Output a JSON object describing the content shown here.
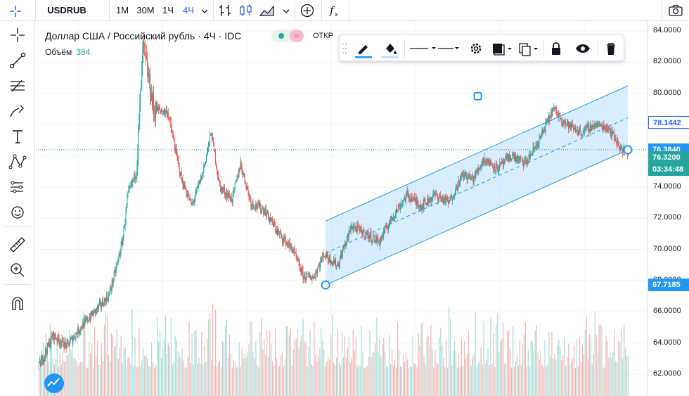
{
  "toolbar": {
    "symbol": "USDRUB",
    "intervals": [
      "1M",
      "30M",
      "1Ч",
      "4Ч"
    ],
    "active_interval": "4Ч"
  },
  "legend": {
    "title": "Доллар США / Российский рубль · 4Ч · IDC",
    "ohlc_label": "ОТКР",
    "volume_label": "Объём",
    "volume_value": "384"
  },
  "price_axis": {
    "ticks": [
      "84.0000",
      "82.0000",
      "80.0000",
      "78.0000",
      "76.0000",
      "74.0000",
      "72.0000",
      "70.0000",
      "68.0000",
      "66.0000",
      "64.0000",
      "62.0000"
    ],
    "labels": [
      {
        "text": "78.1442",
        "color": "#ffffff",
        "bg": "#2962ff",
        "style": "outline"
      },
      {
        "text": "76.3840",
        "color": "#ffffff",
        "bg": "#2196f3"
      },
      {
        "text": "76.3200",
        "color": "#ffffff",
        "bg": "#26a69a"
      },
      {
        "text": "03:34:48",
        "color": "#ffffff",
        "bg": "#26a69a"
      },
      {
        "text": "67.7185",
        "color": "#ffffff",
        "bg": "#2196f3"
      }
    ]
  },
  "colors": {
    "up": "#26a69a",
    "down": "#ef5350",
    "channel_line": "#2196f3",
    "channel_fill": "#bbdefb",
    "grid": "#f0f3fa"
  },
  "icons": {
    "left": [
      "crosshair-icon",
      "trend-line-icon",
      "fib-icon",
      "brush-icon",
      "text-icon",
      "pattern-icon",
      "prediction-icon",
      "emoji-icon",
      "ruler-icon",
      "zoom-in-icon",
      "magnet-icon"
    ],
    "drawbar": [
      "pencil-icon",
      "fill-icon",
      "line-style-icon",
      "line-width-icon",
      "settings-icon",
      "template-icon",
      "clone-icon",
      "lock-icon",
      "eye-icon",
      "trash-icon"
    ]
  },
  "chart_data": {
    "type": "candlestick",
    "ylim": [
      61,
      84.5
    ],
    "y_ticks": [
      62,
      64,
      66,
      68,
      70,
      72,
      74,
      76,
      78,
      80,
      82,
      84
    ],
    "anchor_points": [
      {
        "i": 0,
        "y": 62.5
      },
      {
        "i": 20,
        "y": 64.5
      },
      {
        "i": 40,
        "y": 63.8
      },
      {
        "i": 60,
        "y": 65.0
      },
      {
        "i": 80,
        "y": 66.0
      },
      {
        "i": 100,
        "y": 67.0
      },
      {
        "i": 110,
        "y": 68.6
      },
      {
        "i": 120,
        "y": 70.5
      },
      {
        "i": 128,
        "y": 73.5
      },
      {
        "i": 140,
        "y": 75.0
      },
      {
        "i": 150,
        "y": 83.0
      },
      {
        "i": 165,
        "y": 79.0
      },
      {
        "i": 185,
        "y": 78.8
      },
      {
        "i": 205,
        "y": 74.5
      },
      {
        "i": 220,
        "y": 72.8
      },
      {
        "i": 235,
        "y": 74.8
      },
      {
        "i": 248,
        "y": 77.5
      },
      {
        "i": 260,
        "y": 74.0
      },
      {
        "i": 278,
        "y": 73.2
      },
      {
        "i": 290,
        "y": 75.5
      },
      {
        "i": 305,
        "y": 73.0
      },
      {
        "i": 325,
        "y": 72.5
      },
      {
        "i": 345,
        "y": 71.0
      },
      {
        "i": 365,
        "y": 70.0
      },
      {
        "i": 380,
        "y": 68.3
      },
      {
        "i": 395,
        "y": 68.2
      },
      {
        "i": 410,
        "y": 69.7
      },
      {
        "i": 430,
        "y": 69.0
      },
      {
        "i": 450,
        "y": 71.5
      },
      {
        "i": 470,
        "y": 71.0
      },
      {
        "i": 490,
        "y": 70.5
      },
      {
        "i": 510,
        "y": 72.2
      },
      {
        "i": 530,
        "y": 73.5
      },
      {
        "i": 550,
        "y": 72.8
      },
      {
        "i": 570,
        "y": 73.5
      },
      {
        "i": 590,
        "y": 73.0
      },
      {
        "i": 610,
        "y": 74.8
      },
      {
        "i": 625,
        "y": 74.5
      },
      {
        "i": 640,
        "y": 75.8
      },
      {
        "i": 660,
        "y": 75.2
      },
      {
        "i": 680,
        "y": 76.0
      },
      {
        "i": 700,
        "y": 75.5
      },
      {
        "i": 720,
        "y": 77.0
      },
      {
        "i": 740,
        "y": 79.0
      },
      {
        "i": 760,
        "y": 78.0
      },
      {
        "i": 780,
        "y": 77.5
      },
      {
        "i": 800,
        "y": 78.0
      },
      {
        "i": 820,
        "y": 77.8
      },
      {
        "i": 840,
        "y": 76.3
      }
    ],
    "channel": {
      "start": {
        "i": 413,
        "y": 67.7185
      },
      "end": {
        "i": 848,
        "y": 76.384
      },
      "mid_handle": {
        "i": 632,
        "y": 75.9
      },
      "width": 4.1
    },
    "last_price": 76.32
  }
}
